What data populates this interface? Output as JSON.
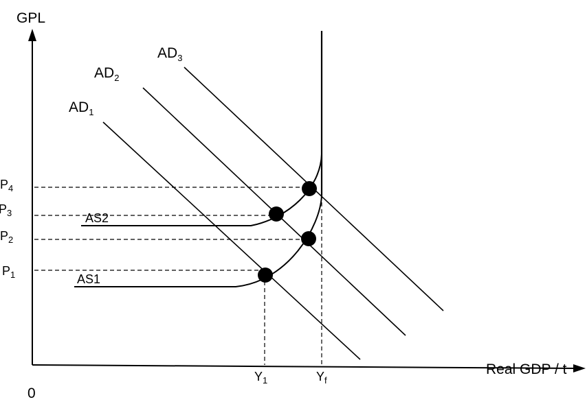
{
  "diagram": {
    "y_axis_label": "GPL",
    "x_axis_label": "Real GDP / t",
    "origin_label": "0",
    "price_levels": [
      {
        "base": "P",
        "sub": "4"
      },
      {
        "base": "P",
        "sub": "3"
      },
      {
        "base": "P",
        "sub": "2"
      },
      {
        "base": "P",
        "sub": "1"
      }
    ],
    "output_levels": [
      {
        "base": "Y",
        "sub": "1"
      },
      {
        "base": "Y",
        "sub": "f"
      }
    ],
    "demand_curves": [
      {
        "base": "AD",
        "sub": "1"
      },
      {
        "base": "AD",
        "sub": "2"
      },
      {
        "base": "AD",
        "sub": "3"
      }
    ],
    "supply_curves": [
      "AS1",
      "AS2"
    ],
    "colors": {
      "ink": "#000000",
      "background": "#ffffff"
    }
  }
}
